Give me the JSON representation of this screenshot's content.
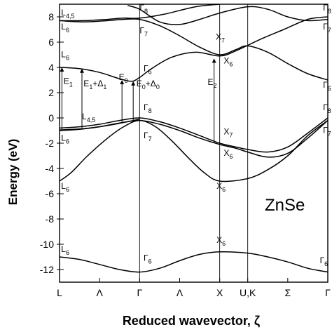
{
  "chart_data": {
    "type": "line",
    "title": "",
    "material": "ZnSe",
    "xlabel": "Reduced wavevector, ζ",
    "ylabel": "Energy (eV)",
    "ylim": [
      -13,
      9
    ],
    "yticks": [
      -12,
      -10,
      -8,
      -6,
      -4,
      -2,
      0,
      2,
      4,
      6,
      8
    ],
    "ytick_labels": [
      "-12",
      "-10",
      "-8",
      "-6",
      "-4",
      "-2",
      "0",
      "2",
      "4",
      "6",
      "8"
    ],
    "xticks": [
      {
        "label": "L",
        "x": 0
      },
      {
        "label": "Λ",
        "x": 0.5
      },
      {
        "label": "Γ",
        "x": 1
      },
      {
        "label": "Λ",
        "x": 1.5
      },
      {
        "label": "X",
        "x": 2
      },
      {
        "label": "U,K",
        "x": 2.35
      },
      {
        "label": "Σ",
        "x": 2.85
      },
      {
        "label": "Γ",
        "x": 3.35
      }
    ],
    "symmetry_lines": [
      1,
      2,
      2.35
    ],
    "grid": false,
    "bands": [
      {
        "points": [
          [
            0,
            -11.0
          ],
          [
            0.25,
            -11.2
          ],
          [
            0.5,
            -11.6
          ],
          [
            0.75,
            -12.0
          ],
          [
            1,
            -12.2
          ],
          [
            1.25,
            -11.9
          ],
          [
            1.5,
            -11.3
          ],
          [
            1.75,
            -10.8
          ],
          [
            2,
            -10.6
          ],
          [
            2.35,
            -10.7
          ],
          [
            2.6,
            -11.0
          ],
          [
            2.85,
            -11.4
          ],
          [
            3.1,
            -11.9
          ],
          [
            3.35,
            -12.2
          ]
        ]
      },
      {
        "points": [
          [
            0,
            -5.0
          ],
          [
            0.15,
            -4.3
          ],
          [
            0.35,
            -3.0
          ],
          [
            0.6,
            -1.6
          ],
          [
            0.8,
            -0.7
          ],
          [
            1,
            -0.2
          ],
          [
            1.2,
            -0.7
          ],
          [
            1.4,
            -1.8
          ],
          [
            1.6,
            -3.1
          ],
          [
            1.8,
            -4.3
          ],
          [
            2,
            -5.0
          ],
          [
            2.35,
            -4.8
          ],
          [
            2.6,
            -4.1
          ],
          [
            2.85,
            -3.0
          ],
          [
            3.1,
            -1.4
          ],
          [
            3.35,
            -0.2
          ]
        ]
      },
      {
        "points": [
          [
            0,
            -1.0
          ],
          [
            0.25,
            -0.9
          ],
          [
            0.5,
            -0.7
          ],
          [
            0.75,
            -0.4
          ],
          [
            1,
            -0.2
          ],
          [
            1.25,
            -0.5
          ],
          [
            1.5,
            -1.0
          ],
          [
            1.75,
            -1.6
          ],
          [
            2,
            -2.1
          ],
          [
            2.2,
            -2.4
          ],
          [
            2.35,
            -2.7
          ],
          [
            2.6,
            -3.1
          ],
          [
            2.85,
            -2.8
          ],
          [
            3.1,
            -1.6
          ],
          [
            3.35,
            -0.2
          ]
        ]
      },
      {
        "points": [
          [
            0,
            -0.8
          ],
          [
            0.25,
            -0.7
          ],
          [
            0.5,
            -0.5
          ],
          [
            0.75,
            -0.2
          ],
          [
            1,
            0.0
          ],
          [
            1.25,
            -0.3
          ],
          [
            1.5,
            -0.8
          ],
          [
            1.75,
            -1.4
          ],
          [
            2,
            -2.0
          ],
          [
            2.2,
            -2.3
          ],
          [
            2.35,
            -2.5
          ],
          [
            2.6,
            -2.7
          ],
          [
            2.85,
            -2.3
          ],
          [
            3.1,
            -1.2
          ],
          [
            3.35,
            0.0
          ]
        ]
      },
      {
        "points": [
          [
            0,
            4.0
          ],
          [
            0.25,
            3.9
          ],
          [
            0.5,
            3.6
          ],
          [
            0.75,
            3.1
          ],
          [
            0.9,
            2.9
          ],
          [
            1,
            3.2
          ],
          [
            1.15,
            3.9
          ],
          [
            1.4,
            4.8
          ],
          [
            1.7,
            5.2
          ],
          [
            2,
            4.9
          ],
          [
            2.2,
            5.3
          ],
          [
            2.5,
            6.2
          ],
          [
            2.8,
            7.0
          ],
          [
            3.1,
            7.8
          ],
          [
            3.35,
            8.0
          ]
        ]
      },
      {
        "points": [
          [
            0,
            7.7
          ],
          [
            0.3,
            7.6
          ],
          [
            0.6,
            7.7
          ],
          [
            0.8,
            7.8
          ],
          [
            1,
            7.8
          ],
          [
            1.25,
            7.3
          ],
          [
            1.5,
            6.5
          ],
          [
            1.75,
            5.6
          ],
          [
            2,
            5.0
          ],
          [
            2.2,
            5.4
          ],
          [
            2.35,
            5.7
          ],
          [
            2.6,
            5.2
          ],
          [
            2.85,
            4.3
          ],
          [
            3.1,
            3.5
          ],
          [
            3.35,
            3.0
          ]
        ]
      },
      {
        "points": [
          [
            0,
            7.7
          ],
          [
            0.3,
            7.7
          ],
          [
            0.6,
            7.8
          ],
          [
            0.8,
            7.9
          ],
          [
            1,
            7.9
          ],
          [
            1.3,
            8.2
          ],
          [
            1.7,
            8.8
          ],
          [
            2,
            9.0
          ]
        ]
      },
      {
        "points": [
          [
            0,
            -0.95
          ],
          [
            0.3,
            -0.85
          ],
          [
            0.6,
            -0.6
          ],
          [
            0.85,
            -0.3
          ],
          [
            1,
            -0.1
          ]
        ]
      },
      {
        "points": [
          [
            0.85,
            8.9
          ],
          [
            1,
            8.6
          ],
          [
            1.25,
            7.6
          ],
          [
            1.5,
            7.4
          ],
          [
            1.75,
            7.8
          ],
          [
            2,
            8.3
          ],
          [
            2.35,
            8.8
          ],
          [
            2.6,
            8.6
          ],
          [
            2.85,
            8.0
          ],
          [
            3.1,
            7.7
          ],
          [
            3.35,
            7.8
          ]
        ]
      }
    ],
    "transitions": [
      {
        "label": "E1",
        "x": 0.03,
        "from": -1.0,
        "to": 4.0
      },
      {
        "label": "E1+Δ1",
        "x": 0.28,
        "from": -0.9,
        "to": 3.9
      },
      {
        "label": "E0",
        "x": 0.78,
        "from": -0.4,
        "to": 3.0
      },
      {
        "label": "E0+Δ0",
        "x": 0.92,
        "from": -0.2,
        "to": 2.9
      },
      {
        "label": "E2",
        "x": 1.93,
        "from": -2.0,
        "to": 4.7
      }
    ],
    "annotations": [
      {
        "text": "L4,5",
        "x": 0.02,
        "y": 8.1
      },
      {
        "text": "L6",
        "x": 0.02,
        "y": 7.0
      },
      {
        "text": "L6",
        "x": 0.02,
        "y": 4.8
      },
      {
        "text": "E1",
        "x": 0.05,
        "y": 2.7
      },
      {
        "text": "E1+Δ1",
        "x": 0.3,
        "y": 2.5
      },
      {
        "text": "E0",
        "x": 0.74,
        "y": 3.0
      },
      {
        "text": "E0+Δ0",
        "x": 0.96,
        "y": 2.5
      },
      {
        "text": "L4,5",
        "x": 0.28,
        "y": -0.1
      },
      {
        "text": "L6",
        "x": 0.02,
        "y": -1.8
      },
      {
        "text": "L6",
        "x": 0.02,
        "y": -5.6
      },
      {
        "text": "L6",
        "x": 0.02,
        "y": -10.6
      },
      {
        "text": "Γ8",
        "x": 1.0,
        "y": 8.5
      },
      {
        "text": "Γ7",
        "x": 1.0,
        "y": 6.7
      },
      {
        "text": "Γ6",
        "x": 1.05,
        "y": 3.7
      },
      {
        "text": "Γ8",
        "x": 1.05,
        "y": 0.6
      },
      {
        "text": "Γ7",
        "x": 1.05,
        "y": -1.6
      },
      {
        "text": "Γ6",
        "x": 1.05,
        "y": -11.3
      },
      {
        "text": "E2",
        "x": 1.85,
        "y": 2.6
      },
      {
        "text": "X7",
        "x": 1.95,
        "y": 6.2
      },
      {
        "text": "X6",
        "x": 2.05,
        "y": 4.3
      },
      {
        "text": "X7",
        "x": 2.05,
        "y": -1.3
      },
      {
        "text": "X6",
        "x": 2.05,
        "y": -3.0
      },
      {
        "text": "X6",
        "x": 1.96,
        "y": -5.6
      },
      {
        "text": "X6",
        "x": 1.96,
        "y": -9.9
      },
      {
        "text": "Γ8",
        "x": 3.29,
        "y": 8.5
      },
      {
        "text": "Γ7",
        "x": 3.29,
        "y": 7.0
      },
      {
        "text": "Γ6",
        "x": 3.29,
        "y": 2.4
      },
      {
        "text": "Γ8",
        "x": 3.29,
        "y": 0.6
      },
      {
        "text": "Γ7",
        "x": 3.29,
        "y": -1.2
      },
      {
        "text": "Γ6",
        "x": 3.25,
        "y": -11.5
      }
    ]
  }
}
